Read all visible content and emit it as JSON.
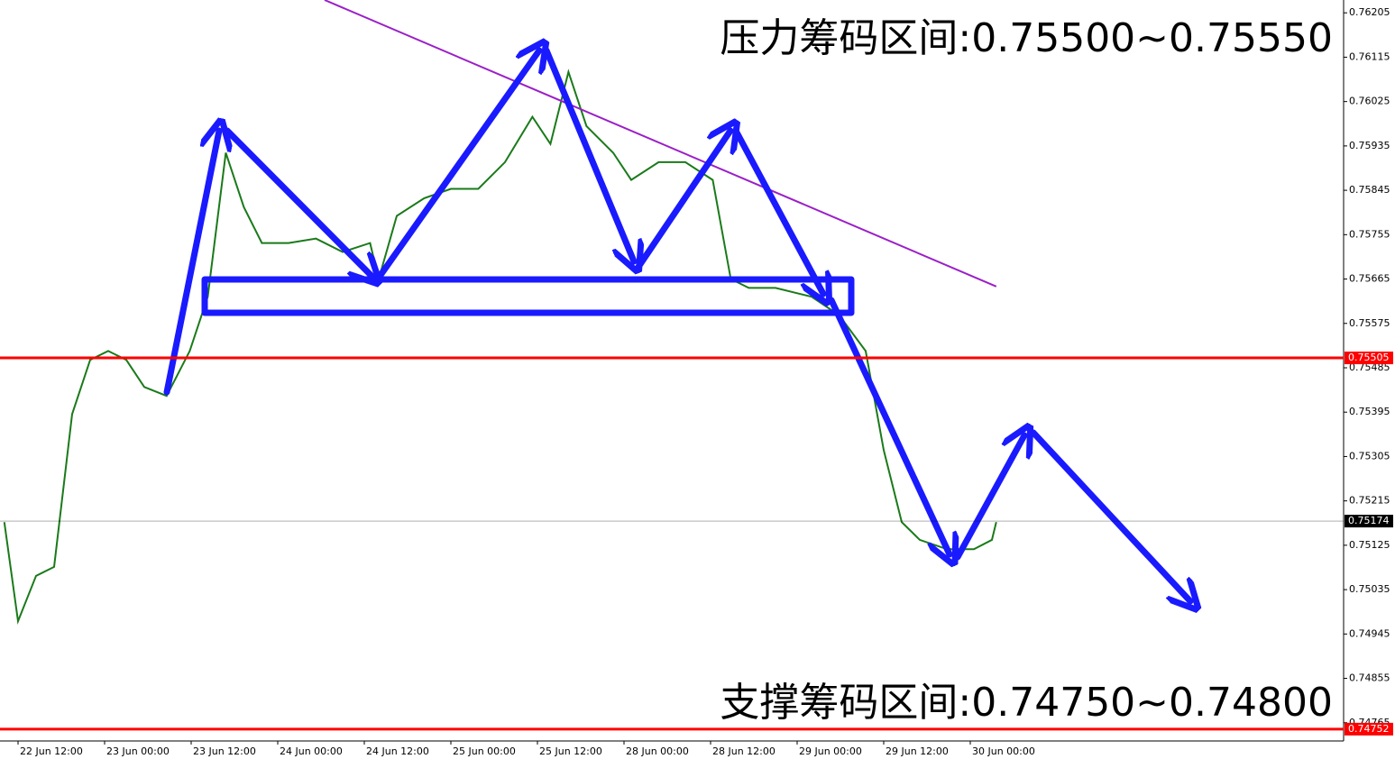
{
  "chart_data": {
    "type": "line",
    "annotations": [
      "压力筹码区间:0.75500~0.75550",
      "支撑筹码区间:0.74750~0.74800"
    ],
    "xlim": [
      -2.5,
      183.75
    ],
    "xticks": [
      {
        "value": 0,
        "label": "22 Jun 12:00"
      },
      {
        "value": 12,
        "label": "23 Jun 00:00"
      },
      {
        "value": 24,
        "label": "23 Jun 12:00"
      },
      {
        "value": 36,
        "label": "24 Jun 00:00"
      },
      {
        "value": 48,
        "label": "24 Jun 12:00"
      },
      {
        "value": 60,
        "label": "25 Jun 00:00"
      },
      {
        "value": 72,
        "label": "25 Jun 12:00"
      },
      {
        "value": 84,
        "label": "28 Jun 00:00"
      },
      {
        "value": 96,
        "label": "28 Jun 12:00"
      },
      {
        "value": 108,
        "label": "29 Jun 00:00"
      },
      {
        "value": 120,
        "label": "29 Jun 12:00"
      },
      {
        "value": 132,
        "label": "30 Jun 00:00"
      }
    ],
    "ylim": [
      0.74728,
      0.76231
    ],
    "yticks": [
      0.76205,
      0.76115,
      0.76025,
      0.75935,
      0.75845,
      0.75755,
      0.75665,
      0.75575,
      0.75485,
      0.75395,
      0.75305,
      0.75215,
      0.75125,
      0.75035,
      0.74945,
      0.74855,
      0.74765
    ],
    "levels": [
      {
        "value": 0.75505,
        "color": "#ff0000"
      },
      {
        "value": 0.75174,
        "color": "#000000"
      },
      {
        "value": 0.74752,
        "color": "#ff0000"
      }
    ],
    "series": [
      {
        "color": "#1a7a1a",
        "x": [
          -1.9,
          0,
          2.5,
          5,
          7.5,
          10,
          12.5,
          15,
          17.5,
          20.6,
          23.8,
          26.3,
          28.8,
          31.3,
          33.8,
          37.5,
          41.3,
          45,
          48.8,
          50,
          52.5,
          56.3,
          60,
          63.8,
          67.5,
          71.3,
          73.8,
          76.3,
          78.8,
          82.5,
          85,
          88.8,
          92.5,
          96.3,
          98.8,
          101.3,
          105,
          110,
          113.8,
          117.5,
          120,
          122.5,
          125,
          128.8,
          132.5,
          135,
          135.6
        ],
        "values": [
          0.75172,
          0.74971,
          0.75063,
          0.75081,
          0.75391,
          0.75501,
          0.75519,
          0.75501,
          0.75446,
          0.75428,
          0.75519,
          0.75629,
          0.75921,
          0.75811,
          0.75738,
          0.75738,
          0.75747,
          0.7572,
          0.75738,
          0.75665,
          0.75793,
          0.75829,
          0.75848,
          0.75848,
          0.75902,
          0.75994,
          0.75939,
          0.76085,
          0.75975,
          0.75921,
          0.75866,
          0.75902,
          0.75902,
          0.75866,
          0.75665,
          0.75647,
          0.75647,
          0.75629,
          0.75592,
          0.75519,
          0.75318,
          0.75172,
          0.75136,
          0.75117,
          0.75117,
          0.75136,
          0.75172
        ]
      },
      {
        "color": "#9b1fc8",
        "x": [
          42.5,
          135.6
        ],
        "values": [
          0.76231,
          0.7565
        ]
      }
    ]
  }
}
